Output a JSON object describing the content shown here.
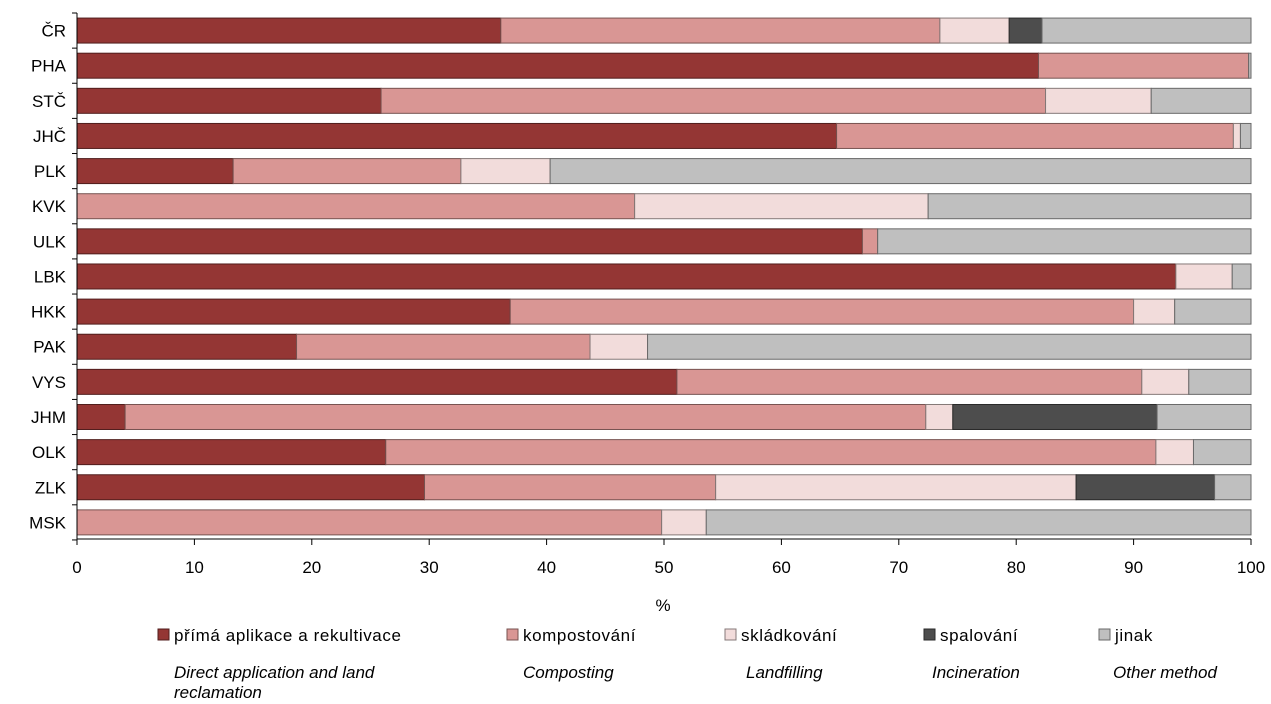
{
  "chart_data": {
    "type": "bar",
    "orientation": "horizontal",
    "stacked": true,
    "categories": [
      "ČR",
      "PHA",
      "STČ",
      "JHČ",
      "PLK",
      "KVK",
      "ULK",
      "LBK",
      "HKK",
      "PAK",
      "VYS",
      "JHM",
      "OLK",
      "ZLK",
      "MSK"
    ],
    "series": [
      {
        "name": "přímá aplikace a rekultivace",
        "name_en": [
          "Direct application and land",
          "reclamation"
        ],
        "color": "#943634",
        "values": [
          36.1,
          81.9,
          25.9,
          64.7,
          13.3,
          0,
          66.9,
          93.6,
          36.9,
          18.7,
          51.1,
          4.1,
          26.3,
          29.6,
          0
        ]
      },
      {
        "name": "kompostování",
        "name_en": [
          "Composting"
        ],
        "color": "#d99694",
        "values": [
          37.4,
          17.9,
          56.6,
          33.8,
          19.4,
          47.5,
          1.3,
          0,
          53.1,
          25.0,
          39.6,
          68.2,
          65.6,
          24.8,
          49.8
        ]
      },
      {
        "name": "skládkování",
        "name_en": [
          "Landfilling"
        ],
        "color": "#f2dcdb",
        "values": [
          5.9,
          0,
          9.0,
          0.6,
          7.6,
          25.0,
          0,
          4.8,
          3.5,
          4.9,
          4.0,
          2.3,
          3.2,
          30.7,
          3.8
        ]
      },
      {
        "name": "spalování",
        "name_en": [
          "Incineration"
        ],
        "color": "#4d4d4d",
        "values": [
          2.8,
          0,
          0,
          0,
          0,
          0,
          0,
          0,
          0,
          0,
          0,
          17.4,
          0,
          11.8,
          0
        ]
      },
      {
        "name": "jinak",
        "name_en": [
          "Other method"
        ],
        "color": "#bfbfbf",
        "values": [
          17.8,
          0.2,
          8.5,
          0.9,
          59.7,
          27.5,
          31.8,
          1.6,
          6.5,
          51.4,
          5.3,
          8.0,
          4.9,
          3.1,
          46.4
        ]
      }
    ],
    "xlim": [
      0,
      100
    ],
    "xticks": [
      "0",
      "10",
      "20",
      "30",
      "40",
      "50",
      "60",
      "70",
      "80",
      "90",
      "100"
    ],
    "xlabel": "%",
    "ylabel": "",
    "title": "",
    "grid": false,
    "legend": "bottom"
  }
}
